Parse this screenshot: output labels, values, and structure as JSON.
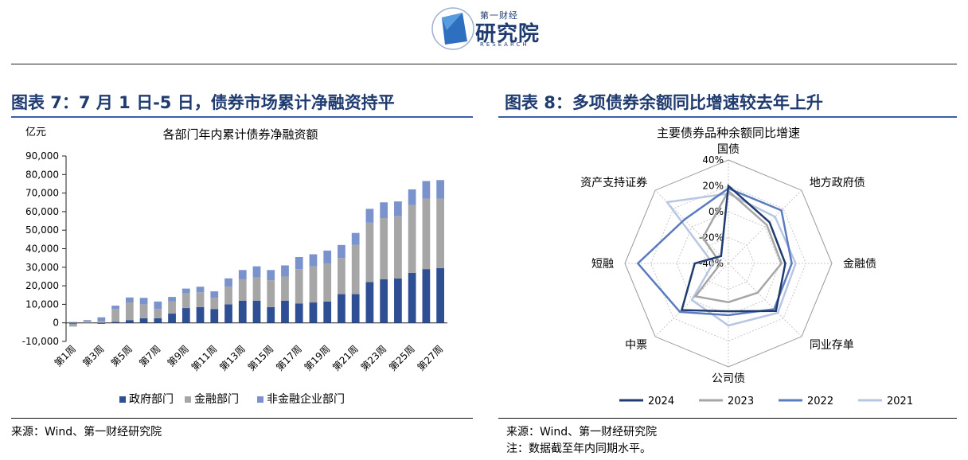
{
  "logo": {
    "line1": "第一财经",
    "line2": "研究院",
    "line3": "RESEARCH"
  },
  "left": {
    "fig_title": "图表 7：7 月 1 日-5 日，债券市场累计净融资持平",
    "source": "来源：Wind、第一财经研究院"
  },
  "right": {
    "fig_title": "图表 8：多项债券余额同比增速较去年上升",
    "source": "来源：Wind、第一财经研究院",
    "note": "注：数据截至年内同期水平。"
  },
  "chart_data": [
    {
      "type": "bar",
      "stacked": true,
      "title": "各部门年内累计债券净融资额",
      "unit_label": "亿元",
      "ylim": [
        -10000,
        90000
      ],
      "yticks": [
        "-10,000",
        "0",
        "10,000",
        "20,000",
        "30,000",
        "40,000",
        "50,000",
        "60,000",
        "70,000",
        "80,000",
        "90,000"
      ],
      "categories": [
        "第1周",
        "第2周",
        "第3周",
        "第4周",
        "第5周",
        "第6周",
        "第7周",
        "第8周",
        "第9周",
        "第10周",
        "第11周",
        "第12周",
        "第13周",
        "第14周",
        "第15周",
        "第16周",
        "第17周",
        "第18周",
        "第19周",
        "第20周",
        "第21周",
        "第22周",
        "第23周",
        "第24周",
        "第25周",
        "第26周",
        "第27周"
      ],
      "tick_labels_shown": [
        "第1周",
        "第3周",
        "第5周",
        "第7周",
        "第9周",
        "第11周",
        "第13周",
        "第15周",
        "第17周",
        "第19周",
        "第21周",
        "第23周",
        "第25周",
        "第27周"
      ],
      "legend_position": "bottom",
      "series": [
        {
          "name": "政府部门",
          "color": "#2e4f94",
          "values": [
            -500,
            0,
            -500,
            500,
            1500,
            2500,
            2500,
            5000,
            8000,
            8500,
            7500,
            10000,
            12000,
            12000,
            8500,
            12000,
            10500,
            11000,
            11500,
            15500,
            15500,
            22000,
            23500,
            24000,
            27000,
            29000,
            29500
          ]
        },
        {
          "name": "金融部门",
          "color": "#a6a6a6",
          "values": [
            -1500,
            1000,
            1000,
            7000,
            9500,
            7500,
            5000,
            6500,
            8000,
            8000,
            6000,
            9500,
            11500,
            12500,
            14500,
            13000,
            18500,
            19500,
            20500,
            19500,
            26500,
            32000,
            33000,
            33500,
            36500,
            38000,
            37500
          ]
        },
        {
          "name": "非金融企业部门",
          "color": "#7b93cc",
          "values": [
            500,
            500,
            2000,
            1800,
            2700,
            3500,
            4000,
            2500,
            2500,
            3000,
            3500,
            4500,
            5000,
            6000,
            5500,
            6000,
            6500,
            6500,
            7000,
            7000,
            6500,
            7500,
            8500,
            8000,
            8500,
            9500,
            10000
          ]
        }
      ]
    },
    {
      "type": "radar",
      "title": "主要债券品种余额同比增速",
      "axes": [
        "国债",
        "地方政府债",
        "金融债",
        "同业存单",
        "公司债",
        "中票",
        "短融",
        "资产支持证券"
      ],
      "rlim": [
        -40,
        40
      ],
      "ring_labels": [
        "40%",
        "20%",
        "0%",
        "-20%",
        "-40%"
      ],
      "legend_position": "bottom",
      "series": [
        {
          "name": "2024",
          "color": "#1f3b70",
          "values": [
            20,
            5,
            4,
            12,
            -3,
            11,
            -14,
            -32
          ]
        },
        {
          "name": "2023",
          "color": "#a6a6a6",
          "values": [
            16,
            2,
            1,
            -8,
            -10,
            -4,
            -34,
            -12
          ]
        },
        {
          "name": "2022",
          "color": "#5b7bbf",
          "values": [
            18,
            18,
            9,
            10,
            0,
            13,
            30,
            8
          ]
        },
        {
          "name": "2021",
          "color": "#b8c6e3",
          "values": [
            14,
            11,
            12,
            14,
            8,
            0,
            -28,
            27
          ]
        }
      ]
    }
  ]
}
